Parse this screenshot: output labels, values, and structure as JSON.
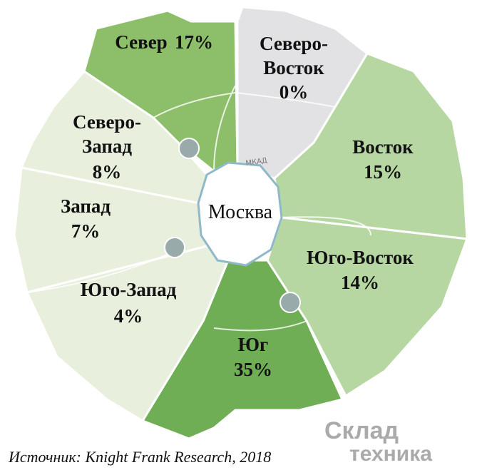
{
  "chart_data": {
    "type": "map",
    "categories": [
      "Север",
      "Северо-Восток",
      "Восток",
      "Юго-Восток",
      "Юг",
      "Юго-Запад",
      "Запад",
      "Северо-Запад"
    ],
    "values": [
      17,
      0,
      15,
      14,
      35,
      4,
      7,
      8
    ],
    "value_labels": [
      "17%",
      "0%",
      "15%",
      "14%",
      "35%",
      "4%",
      "7%",
      "8%"
    ],
    "colors": [
      "#8dbf6a",
      "#e2e2e4",
      "#b7d7a2",
      "#b7d7a2",
      "#6fae55",
      "#e8efdd",
      "#e8efdd",
      "#e8efdd"
    ],
    "center_label": "Москва",
    "ring_label": "МКАД",
    "source": "Источник: Knight Frank Research, 2018",
    "logo": [
      "Склад",
      "техника"
    ]
  }
}
